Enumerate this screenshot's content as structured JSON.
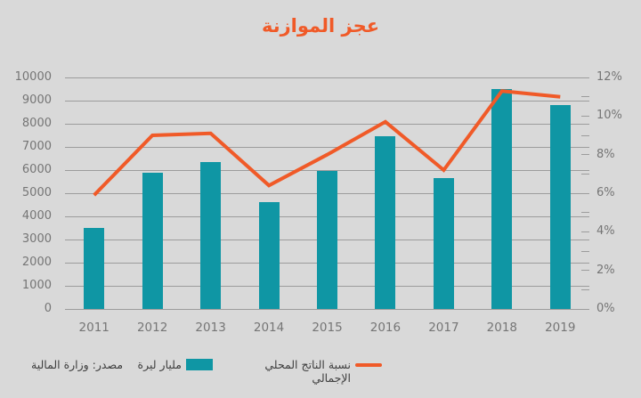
{
  "title": "عجز الموازنة",
  "source_note": "مصدر: وزارة المالية",
  "legend": {
    "bars_label": "مليار ليرة",
    "line_label": "نسبة الناتج المحلي الإجمالي"
  },
  "colors": {
    "background": "#d9d9d9",
    "bars": "#0f96a4",
    "line": "#f05a28",
    "title": "#f05a28",
    "axis_text": "#757575",
    "legend_text": "#3f3f3f",
    "gridline": "#9c9c9c"
  },
  "chart_data": {
    "type": "bar+line combo",
    "title": "عجز الموازنة",
    "categories": [
      "2011",
      "2012",
      "2013",
      "2014",
      "2015",
      "2016",
      "2017",
      "2018",
      "2019"
    ],
    "series": [
      {
        "name": "مليار ليرة",
        "type": "bar",
        "axis": "left",
        "values": [
          3500,
          5900,
          6350,
          4600,
          5950,
          7450,
          5650,
          9500,
          8800
        ]
      },
      {
        "name": "نسبة الناتج المحلي الإجمالي",
        "type": "line",
        "axis": "right",
        "values": [
          5.9,
          9.0,
          9.1,
          6.4,
          8.0,
          9.7,
          7.2,
          11.3,
          11.0
        ]
      }
    ],
    "left_axis": {
      "min": 0,
      "max": 10000,
      "step": 1000,
      "tick_labels": [
        "0",
        "1000",
        "2000",
        "3000",
        "4000",
        "5000",
        "6000",
        "7000",
        "8000",
        "9000",
        "10000"
      ]
    },
    "right_axis": {
      "min": 0,
      "max": 12,
      "step": 2,
      "tick_labels": [
        "0%",
        "2%",
        "4%",
        "6%",
        "8%",
        "10%",
        "12%"
      ]
    },
    "grid": true,
    "legend_position": "bottom"
  }
}
